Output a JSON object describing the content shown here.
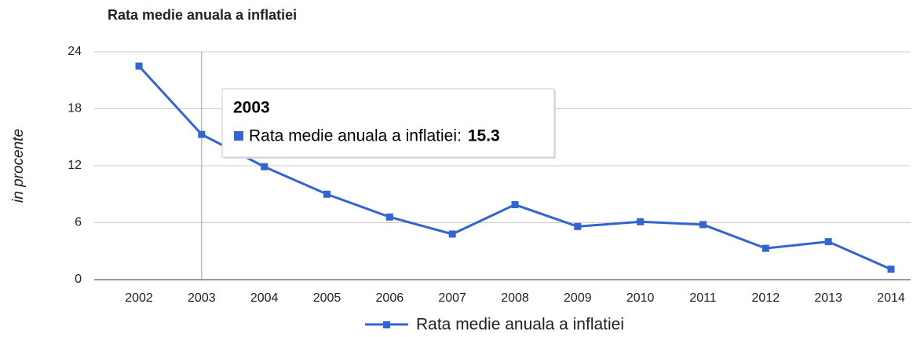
{
  "chart_data": {
    "type": "line",
    "title": "Rata medie anuala a inflatiei",
    "y_label": "in procente",
    "categories": [
      "2002",
      "2003",
      "2004",
      "2005",
      "2006",
      "2007",
      "2008",
      "2009",
      "2010",
      "2011",
      "2012",
      "2013",
      "2014"
    ],
    "series": [
      {
        "name": "Rata medie anuala a inflatiei",
        "color": "#3366cc",
        "values": [
          22.5,
          15.3,
          11.9,
          9.0,
          6.6,
          4.8,
          7.9,
          5.6,
          6.1,
          5.8,
          3.3,
          4.0,
          1.1
        ]
      }
    ],
    "ylim": [
      0,
      24
    ],
    "yticks": [
      0,
      6,
      12,
      18,
      24
    ],
    "grid": true,
    "legend": "bottom",
    "tooltip": {
      "title": "2003",
      "label": "Rata medie anuala a inflatiei:",
      "value": 15.3
    }
  }
}
